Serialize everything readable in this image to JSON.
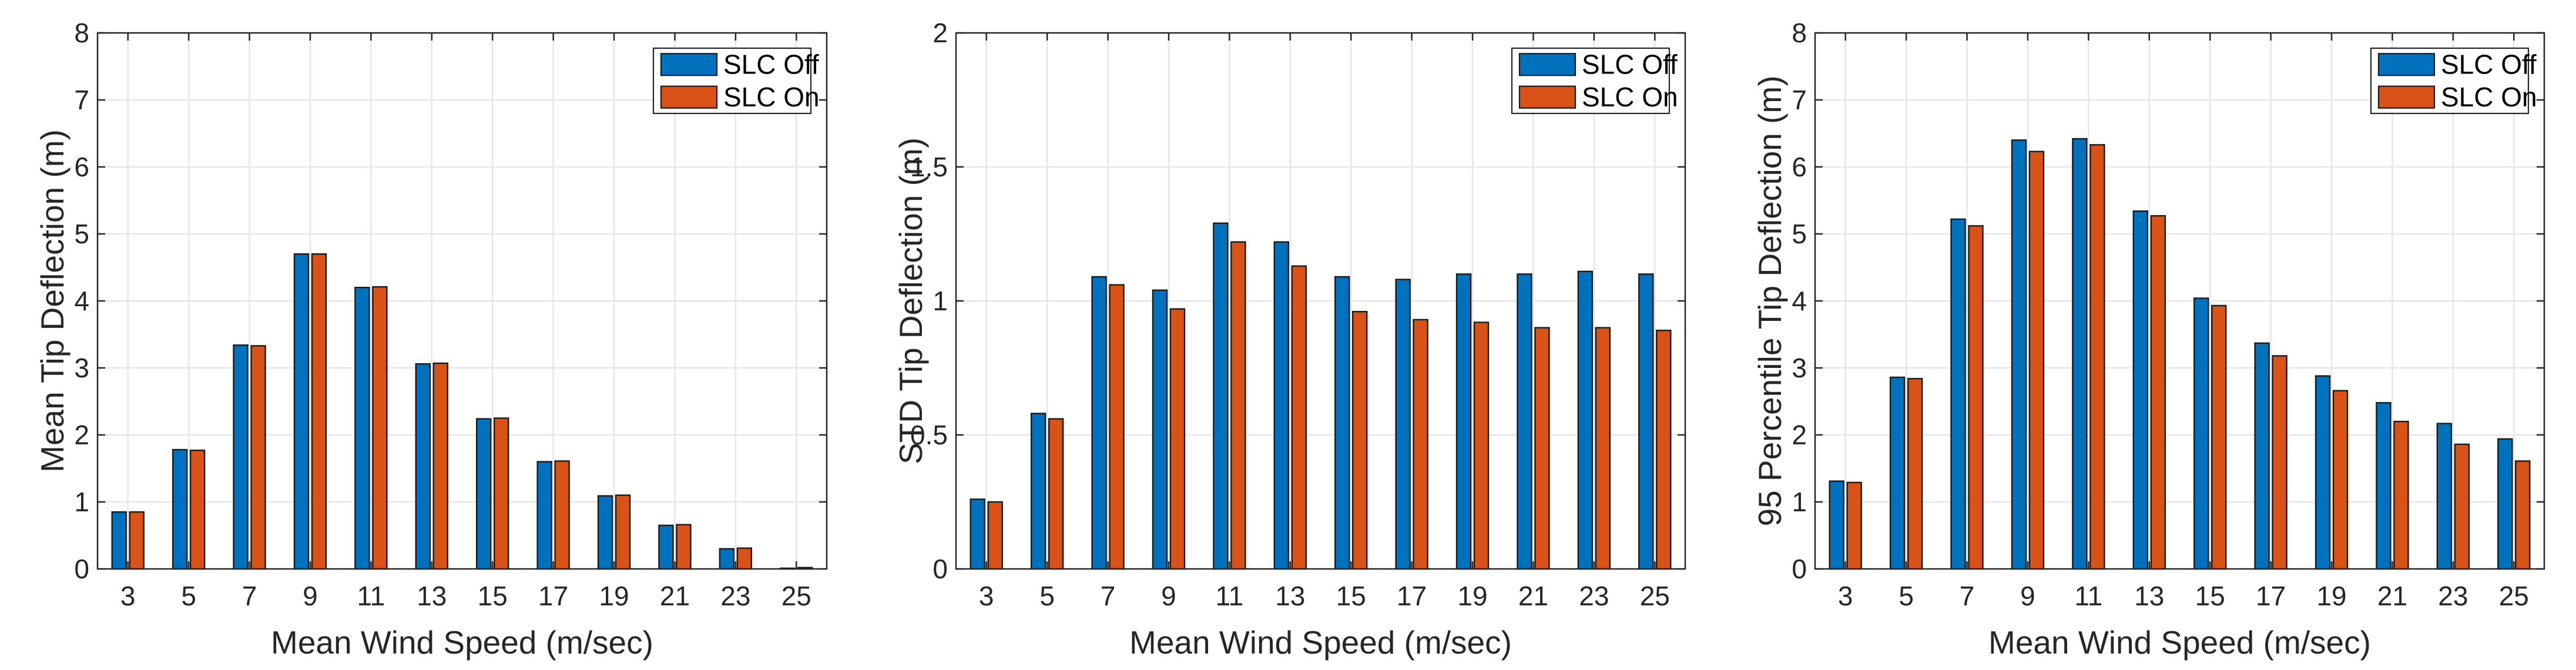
{
  "figure": {
    "background": "#ffffff",
    "axis_color": "#262626",
    "grid_color": "#e6e6e6",
    "bar_edge_color": "#1a1a1a"
  },
  "legend": {
    "labels": [
      "SLC Off",
      "SLC On"
    ],
    "colors": [
      "#0072BD",
      "#D95319"
    ],
    "position": "top-right"
  },
  "chart_data": [
    {
      "type": "bar",
      "title": "",
      "xlabel": "Mean Wind Speed (m/sec)",
      "ylabel": "Mean Tip Deflection (m)",
      "categories": [
        3,
        5,
        7,
        9,
        11,
        13,
        15,
        17,
        19,
        21,
        23,
        25
      ],
      "series": [
        {
          "name": "SLC Off",
          "color": "#0072BD",
          "values": [
            0.85,
            1.78,
            3.34,
            4.7,
            4.2,
            3.06,
            2.24,
            1.6,
            1.09,
            0.65,
            0.3,
            0.01
          ]
        },
        {
          "name": "SLC On",
          "color": "#D95319",
          "values": [
            0.85,
            1.77,
            3.33,
            4.7,
            4.21,
            3.07,
            2.25,
            1.61,
            1.1,
            0.66,
            0.31,
            0.02
          ]
        }
      ],
      "ylim": [
        0,
        8
      ],
      "yticks": [
        0,
        1,
        2,
        3,
        4,
        5,
        6,
        7,
        8
      ],
      "grid": true,
      "legend_position": "top-right"
    },
    {
      "type": "bar",
      "title": "",
      "xlabel": "Mean Wind Speed (m/sec)",
      "ylabel": "STD Tip Deflection (m)",
      "categories": [
        3,
        5,
        7,
        9,
        11,
        13,
        15,
        17,
        19,
        21,
        23,
        25
      ],
      "series": [
        {
          "name": "SLC Off",
          "color": "#0072BD",
          "values": [
            0.26,
            0.58,
            1.09,
            1.04,
            1.29,
            1.22,
            1.09,
            1.08,
            1.1,
            1.1,
            1.11,
            1.1
          ]
        },
        {
          "name": "SLC On",
          "color": "#D95319",
          "values": [
            0.25,
            0.56,
            1.06,
            0.97,
            1.22,
            1.13,
            0.96,
            0.93,
            0.92,
            0.9,
            0.9,
            0.89
          ]
        }
      ],
      "ylim": [
        0,
        2
      ],
      "yticks": [
        0,
        0.5,
        1,
        1.5,
        2
      ],
      "grid": true,
      "legend_position": "top-right"
    },
    {
      "type": "bar",
      "title": "",
      "xlabel": "Mean Wind Speed (m/sec)",
      "ylabel": "95 Percentile Tip Deflection (m)",
      "categories": [
        3,
        5,
        7,
        9,
        11,
        13,
        15,
        17,
        19,
        21,
        23,
        25
      ],
      "series": [
        {
          "name": "SLC Off",
          "color": "#0072BD",
          "values": [
            1.31,
            2.86,
            5.22,
            6.4,
            6.42,
            5.34,
            4.04,
            3.37,
            2.88,
            2.48,
            2.17,
            1.94
          ]
        },
        {
          "name": "SLC On",
          "color": "#D95319",
          "values": [
            1.29,
            2.84,
            5.12,
            6.23,
            6.33,
            5.27,
            3.93,
            3.18,
            2.66,
            2.2,
            1.86,
            1.61
          ]
        }
      ],
      "ylim": [
        0,
        8
      ],
      "yticks": [
        0,
        1,
        2,
        3,
        4,
        5,
        6,
        7,
        8
      ],
      "grid": true,
      "legend_position": "top-right"
    }
  ]
}
